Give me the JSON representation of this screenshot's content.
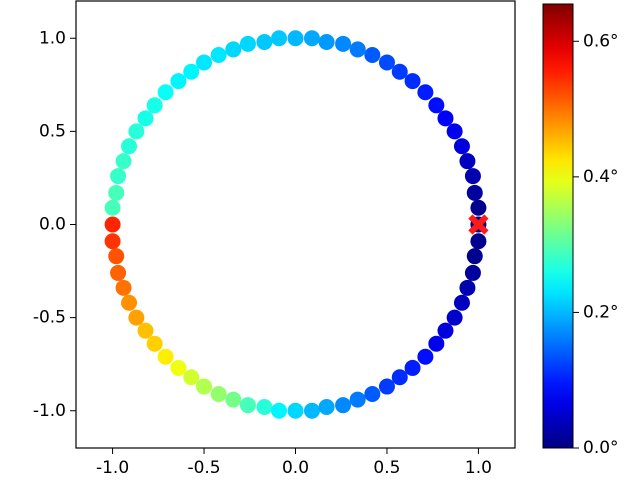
{
  "chart_data": {
    "type": "scatter",
    "x": [
      1.0,
      1.0,
      0.98,
      0.97,
      0.94,
      0.91,
      0.87,
      0.82,
      0.77,
      0.71,
      0.64,
      0.57,
      0.5,
      0.42,
      0.34,
      0.26,
      0.17,
      0.09,
      0,
      -0.09,
      -0.17,
      -0.26,
      -0.34,
      -0.42,
      -0.5,
      -0.57,
      -0.64,
      -0.71,
      -0.77,
      -0.82,
      -0.87,
      -0.91,
      -0.94,
      -0.97,
      -0.98,
      -1.0,
      -1.0,
      -1.0,
      -0.98,
      -0.97,
      -0.94,
      -0.91,
      -0.87,
      -0.82,
      -0.77,
      -0.71,
      -0.64,
      -0.57,
      -0.5,
      -0.42,
      -0.34,
      -0.26,
      -0.17,
      -0.09,
      0,
      0.09,
      0.17,
      0.26,
      0.34,
      0.42,
      0.5,
      0.57,
      0.64,
      0.71,
      0.77,
      0.82,
      0.87,
      0.91,
      0.94,
      0.97,
      0.98,
      1.0
    ],
    "y": [
      0,
      0.09,
      0.17,
      0.26,
      0.34,
      0.42,
      0.5,
      0.57,
      0.64,
      0.71,
      0.77,
      0.82,
      0.87,
      0.91,
      0.94,
      0.97,
      0.98,
      1.0,
      1.0,
      1.0,
      0.98,
      0.97,
      0.94,
      0.91,
      0.87,
      0.82,
      0.77,
      0.71,
      0.64,
      0.57,
      0.5,
      0.42,
      0.34,
      0.26,
      0.17,
      0.09,
      0,
      -0.09,
      -0.17,
      -0.26,
      -0.34,
      -0.42,
      -0.5,
      -0.57,
      -0.64,
      -0.71,
      -0.77,
      -0.82,
      -0.87,
      -0.91,
      -0.94,
      -0.97,
      -0.98,
      -1.0,
      -1.0,
      -1.0,
      -0.98,
      -0.97,
      -0.94,
      -0.91,
      -0.87,
      -0.82,
      -0.77,
      -0.71,
      -0.64,
      -0.57,
      -0.5,
      -0.42,
      -0.34,
      -0.26,
      -0.17,
      -0.09
    ],
    "values": [
      0,
      0.01,
      0.02,
      0.03,
      0.04,
      0.06,
      0.07,
      0.08,
      0.09,
      0.1,
      0.11,
      0.12,
      0.13,
      0.14,
      0.16,
      0.17,
      0.18,
      0.19,
      0.2,
      0.21,
      0.21,
      0.22,
      0.22,
      0.23,
      0.23,
      0.24,
      0.24,
      0.25,
      0.26,
      0.26,
      0.27,
      0.27,
      0.28,
      0.28,
      0.29,
      0.29,
      0.55,
      0.54,
      0.52,
      0.51,
      0.5,
      0.48,
      0.47,
      0.45,
      0.44,
      0.42,
      0.4,
      0.38,
      0.36,
      0.34,
      0.32,
      0.29,
      0.27,
      0.24,
      0.22,
      0.2,
      0.19,
      0.17,
      0.16,
      0.14,
      0.12,
      0.11,
      0.1,
      0.09,
      0.07,
      0.06,
      0.05,
      0.04,
      0.03,
      0.02,
      0.01,
      0.01
    ],
    "colormap": "jet",
    "marker": {
      "x": 1.0,
      "y": 0.0,
      "color": "#ff1a1a"
    },
    "xlim": [
      -1.2,
      1.2
    ],
    "ylim": [
      -1.2,
      1.2
    ],
    "xticks": [
      -1.0,
      -0.5,
      0.0,
      0.5,
      1.0
    ],
    "yticks": [
      -1.0,
      -0.5,
      0.0,
      0.5,
      1.0
    ],
    "clim": [
      0,
      0.655
    ],
    "cticks": [
      {
        "value": 0.0,
        "label": "0.0°"
      },
      {
        "value": 0.2,
        "label": "0.2°"
      },
      {
        "value": 0.4,
        "label": "0.4°"
      },
      {
        "value": 0.6,
        "label": "0.6°"
      }
    ]
  }
}
